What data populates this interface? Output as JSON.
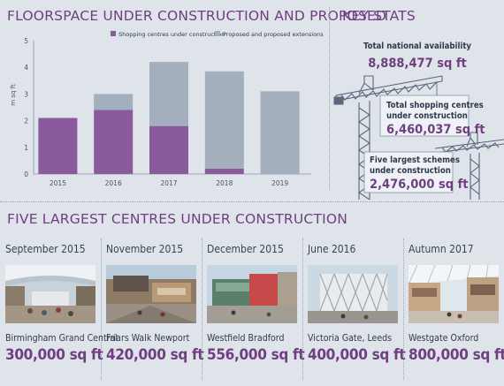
{
  "chart_title": "FLOORSPACE UNDER CONSTRUCTION AND PROPOSED",
  "stats_title": "KEY STATS",
  "centres_title": "FIVE LARGEST CENTRES UNDER CONSTRUCTION",
  "colors": {
    "purple": "#8b5a9c",
    "grey": "#a3afbd",
    "heading": "#6f3f80",
    "background": "#dfe4ea"
  },
  "chart_data": {
    "type": "bar",
    "stacked": true,
    "categories": [
      "2015",
      "2016",
      "2017",
      "2018",
      "2019"
    ],
    "series": [
      {
        "name": "Shopping centres under construction",
        "color": "#8b5a9c",
        "values": [
          2.1,
          2.4,
          1.8,
          0.2,
          0
        ]
      },
      {
        "name": "Proposed and proposed extensions",
        "color": "#a3afbd",
        "values": [
          0,
          0.6,
          2.4,
          3.65,
          3.1
        ]
      }
    ],
    "ylabel": "m sq ft",
    "ylim": [
      0,
      5
    ],
    "yticks": [
      "0",
      "1",
      "2",
      "3",
      "4",
      "5"
    ],
    "grid": false,
    "legend_position": "top"
  },
  "stats": [
    {
      "label_lines": [
        "Total national availability"
      ],
      "value": "8,888,477 sq ft"
    },
    {
      "label_lines": [
        "Total shopping centres",
        "under construction"
      ],
      "value": "6,460,037 sq ft"
    },
    {
      "label_lines": [
        "Five largest schemes",
        "under construction"
      ],
      "value": "2,476,000 sq ft"
    }
  ],
  "centres": [
    {
      "date": "September 2015",
      "name": "Birmingham Grand Central",
      "size": "300,000 sq ft"
    },
    {
      "date": "November 2015",
      "name": "Friars Walk Newport",
      "size": "420,000 sq ft"
    },
    {
      "date": "December 2015",
      "name": "Westfield Bradford",
      "size": "556,000 sq ft"
    },
    {
      "date": "June 2016",
      "name": "Victoria Gate, Leeds",
      "size": "400,000 sq ft"
    },
    {
      "date": "Autumn 2017",
      "name": "Westgate Oxford",
      "size": "800,000 sq ft"
    }
  ]
}
